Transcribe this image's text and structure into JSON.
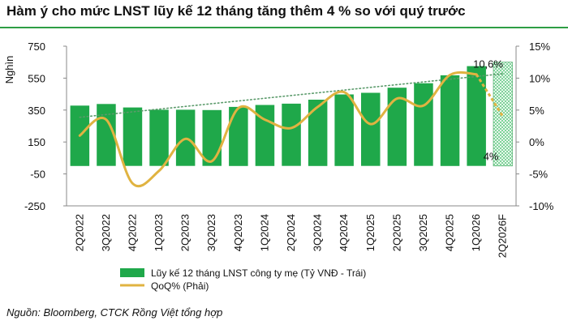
{
  "title": "Hàm ý cho mức LNST lũy kế 12 tháng tăng thêm 4 % so với quý trước",
  "source": "Nguồn:  Bloomberg, CTCK Rồng Việt tổng hợp",
  "chart_data": {
    "type": "bar",
    "title": "Hàm ý cho mức LNST lũy kế 12 tháng tăng thêm 4 % so với quý trước",
    "categories": [
      "2Q2022",
      "3Q2022",
      "4Q2022",
      "1Q2023",
      "2Q2023",
      "3Q2023",
      "4Q2023",
      "1Q2024",
      "2Q2024",
      "3Q2024",
      "4Q2024",
      "1Q2025",
      "2Q2025",
      "3Q2025",
      "4Q2025",
      "1Q2026",
      "2Q2026F"
    ],
    "ylabel": "Nghìn",
    "ylim": [
      -250,
      750
    ],
    "yticks": [
      750,
      550,
      350,
      150,
      -50,
      -250
    ],
    "y2lim": [
      -10,
      15
    ],
    "y2ticks": [
      "15%",
      "10%",
      "5%",
      "0%",
      "-5%",
      "-10%"
    ],
    "series": [
      {
        "name": "Lũy kế 12 tháng LNST công ty mẹ (Tỷ VNĐ - Trái)",
        "kind": "bar",
        "axis": "left",
        "color": "#1fa84a",
        "forecast_pattern": "checkered",
        "values": [
          378,
          388,
          366,
          352,
          352,
          350,
          370,
          382,
          390,
          415,
          448,
          458,
          490,
          518,
          568,
          625,
          650
        ]
      },
      {
        "name": "QoQ% (Phải)",
        "kind": "line",
        "axis": "right",
        "color": "#e0b341",
        "values": [
          1.0,
          3.5,
          -6.5,
          -4.5,
          0.5,
          -3.0,
          5.3,
          3.5,
          2.2,
          5.5,
          7.8,
          2.8,
          6.8,
          5.7,
          10.5,
          10.6,
          4.0
        ]
      }
    ],
    "trendline": {
      "style": "dotted",
      "color": "#5a9a6a"
    },
    "annotations": [
      {
        "text": "10,6%",
        "index": 15,
        "value": 10.6
      },
      {
        "text": "4%",
        "index": 16,
        "value": 4.0
      }
    ],
    "legend_position": "bottom",
    "grid": false
  }
}
